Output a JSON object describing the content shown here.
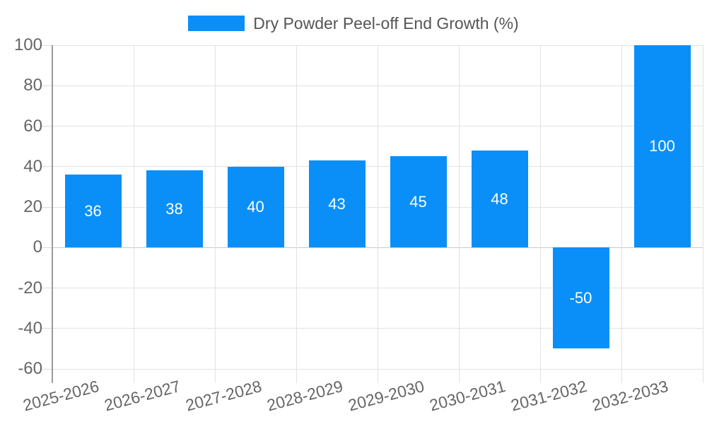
{
  "legend": {
    "label": "Dry Powder Peel-off End Growth (%)"
  },
  "chart_data": {
    "type": "bar",
    "title": "",
    "xlabel": "",
    "ylabel": "",
    "categories": [
      "2025-2026",
      "2026-2027",
      "2027-2028",
      "2028-2029",
      "2029-2030",
      "2030-2031",
      "2031-2032",
      "2032-2033"
    ],
    "values": [
      36,
      38,
      40,
      43,
      45,
      48,
      -50,
      100
    ],
    "series_name": "Dry Powder Peel-off End Growth (%)",
    "value_labels": [
      "36",
      "38",
      "40",
      "43",
      "45",
      "48",
      "-50",
      "100"
    ],
    "ylim": [
      -60,
      100
    ],
    "ytick_step": 20,
    "yticks": [
      100,
      80,
      60,
      40,
      20,
      0,
      -20,
      -40,
      -60
    ],
    "grid": true,
    "legend_position": "top-center"
  },
  "colors": {
    "bar": "#0a8ff9",
    "grid": "#e2e2e2",
    "zero_line": "#c9c9c9",
    "axis": "#9a9a9a",
    "tick": "#d9d9d9",
    "tick_label": "#666666",
    "legend_text": "#555555",
    "value_label": "#ffffff",
    "background": "#ffffff"
  }
}
